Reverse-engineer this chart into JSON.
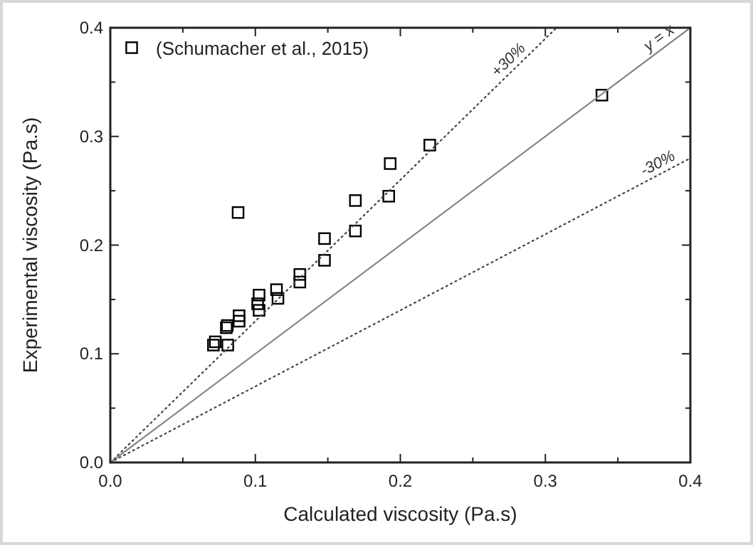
{
  "chart_data": {
    "type": "scatter",
    "xlabel": "Calculated viscosity (Pa.s)",
    "ylabel": "Experimental viscosity (Pa.s)",
    "xlim": [
      0,
      0.4
    ],
    "ylim": [
      0,
      0.4
    ],
    "xticks": [
      {
        "value": 0,
        "label": "0.0"
      },
      {
        "value": 0.05,
        "label": null
      },
      {
        "value": 0.1,
        "label": "0.1"
      },
      {
        "value": 0.15,
        "label": null
      },
      {
        "value": 0.2,
        "label": "0.2"
      },
      {
        "value": 0.25,
        "label": null
      },
      {
        "value": 0.3,
        "label": "0.3"
      },
      {
        "value": 0.35,
        "label": null
      },
      {
        "value": 0.4,
        "label": "0.4"
      }
    ],
    "yticks": [
      {
        "value": 0,
        "label": "0.0"
      },
      {
        "value": 0.05,
        "label": null
      },
      {
        "value": 0.1,
        "label": "0.1"
      },
      {
        "value": 0.15,
        "label": null
      },
      {
        "value": 0.2,
        "label": "0.2"
      },
      {
        "value": 0.25,
        "label": null
      },
      {
        "value": 0.3,
        "label": "0.3"
      },
      {
        "value": 0.35,
        "label": null
      },
      {
        "value": 0.4,
        "label": "0.4"
      }
    ],
    "grid": false,
    "legend": "top left",
    "series": [
      {
        "name": "(Schumacher et al., 2015)",
        "color": "#000000",
        "marker": "square",
        "x": [
          0.0711,
          0.0724,
          0.081,
          0.08,
          0.0807,
          0.0888,
          0.0888,
          0.0881,
          0.1016,
          0.1026,
          0.1026,
          0.1146,
          0.1156,
          0.1307,
          0.1307,
          0.1477,
          0.1477,
          0.169,
          0.169,
          0.192,
          0.193,
          0.2203,
          0.339
        ],
        "values": [
          0.108,
          0.111,
          0.108,
          0.124,
          0.126,
          0.13,
          0.135,
          0.23,
          0.146,
          0.14,
          0.154,
          0.159,
          0.151,
          0.173,
          0.166,
          0.186,
          0.206,
          0.213,
          0.241,
          0.245,
          0.275,
          0.292,
          0.338
        ]
      },
      {
        "type": "line",
        "color": "#444444",
        "line_style": "dotted",
        "marker": "none",
        "x": [
          0,
          0.3077
        ],
        "values": [
          0,
          0.4
        ]
      },
      {
        "type": "line",
        "color": "#888888",
        "line_style": "solid",
        "marker": "none",
        "x": [
          0,
          0.4
        ],
        "values": [
          0,
          0.4
        ]
      },
      {
        "type": "line",
        "color": "#444444",
        "line_style": "dotted",
        "marker": "none",
        "x": [
          0,
          0.4
        ],
        "values": [
          0,
          0.28
        ]
      }
    ],
    "annotations": [
      "+30%",
      "y = x",
      "-30%"
    ]
  }
}
